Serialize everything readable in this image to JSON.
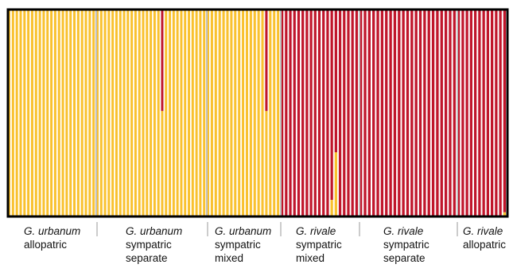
{
  "chart_data": {
    "type": "bar",
    "stacked": true,
    "ylim": [
      0,
      1
    ],
    "legend": "none",
    "colors": {
      "urbanum": "#F9C12E",
      "rivale": "#C0162B",
      "separator": "#c0c0c0",
      "frame": "#000000"
    },
    "series": [
      {
        "key": "urbanum",
        "color": "#F9C12E"
      },
      {
        "key": "rivale",
        "color": "#C0162B"
      }
    ],
    "groups": [
      {
        "species": "G. urbanum",
        "lines": [
          "allopatric"
        ],
        "n": 23,
        "base": "urbanum",
        "admixed": []
      },
      {
        "species": "G. urbanum",
        "lines": [
          "sympatric",
          "separate"
        ],
        "n": 29,
        "base": "urbanum",
        "admixed": [
          {
            "index": 17,
            "other_fraction": 0.49
          }
        ]
      },
      {
        "species": "G. urbanum",
        "lines": [
          "sympatric",
          "mixed"
        ],
        "n": 19,
        "base": "urbanum",
        "admixed": [
          {
            "index": 15,
            "other_fraction": 0.49
          }
        ]
      },
      {
        "species": "G. rivale",
        "lines": [
          "sympatric",
          "mixed"
        ],
        "n": 19,
        "base": "rivale",
        "admixed": [
          {
            "index": 12,
            "other_fraction": 0.08
          },
          {
            "index": 13,
            "other_fraction": 0.31
          }
        ]
      },
      {
        "species": "G. rivale",
        "lines": [
          "sympatric",
          "separate"
        ],
        "n": 23,
        "base": "rivale",
        "admixed": []
      },
      {
        "species": "G. rivale",
        "lines": [
          "allopatric"
        ],
        "n": 12,
        "base": "rivale",
        "admixed": [
          {
            "index": 11,
            "other_fraction": 0.02
          }
        ]
      }
    ]
  }
}
